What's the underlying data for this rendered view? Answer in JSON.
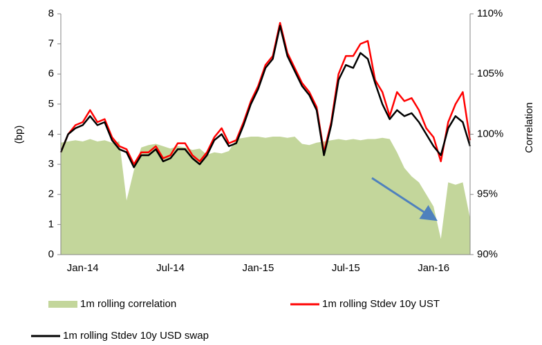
{
  "chart_data": {
    "type": "line",
    "y_label": "(bp)",
    "y2_label": "Correlation",
    "categories": [
      null,
      null,
      null,
      "Jan-14",
      null,
      null,
      null,
      null,
      null,
      null,
      null,
      null,
      null,
      null,
      null,
      "Jul-14",
      null,
      null,
      null,
      null,
      null,
      null,
      null,
      null,
      null,
      null,
      null,
      "Jan-15",
      null,
      null,
      null,
      null,
      null,
      null,
      null,
      null,
      null,
      null,
      null,
      "Jul-15",
      null,
      null,
      null,
      null,
      null,
      null,
      null,
      null,
      null,
      null,
      null,
      "Jan-16",
      null,
      null,
      null,
      null,
      null
    ],
    "ylim": [
      0,
      8
    ],
    "yticks": [
      0,
      1,
      2,
      3,
      4,
      5,
      6,
      7,
      8
    ],
    "y2lim": [
      90,
      110
    ],
    "y2ticks": [
      {
        "value": 90,
        "label": "90%"
      },
      {
        "value": 95,
        "label": "95%"
      },
      {
        "value": 100,
        "label": "100%"
      },
      {
        "value": 105,
        "label": "105%"
      },
      {
        "value": 110,
        "label": "110%"
      }
    ],
    "series": [
      {
        "name": "1m rolling correlation",
        "type": "area",
        "axis": "y2",
        "color": "#c3d69b",
        "values": [
          99.3,
          99.4,
          99.5,
          99.4,
          99.6,
          99.4,
          99.5,
          99.3,
          99.4,
          94.5,
          97,
          98.9,
          99.1,
          99.2,
          99,
          98.8,
          99,
          98.9,
          98.7,
          98.8,
          98.3,
          98.5,
          98.4,
          98.6,
          99.6,
          99.7,
          99.8,
          99.8,
          99.7,
          99.8,
          99.8,
          99.7,
          99.8,
          99.2,
          99.1,
          99.3,
          99.4,
          99.5,
          99.6,
          99.5,
          99.6,
          99.5,
          99.6,
          99.6,
          99.7,
          99.6,
          98.5,
          97.2,
          96.5,
          96,
          95,
          94,
          91.3,
          96,
          95.8,
          96,
          93
        ]
      },
      {
        "name": "1m rolling Stdev 10y UST",
        "type": "line",
        "color": "#ff0000",
        "values": [
          3.4,
          4.0,
          4.3,
          4.4,
          4.8,
          4.4,
          4.5,
          3.9,
          3.6,
          3.5,
          3.0,
          3.4,
          3.4,
          3.6,
          3.2,
          3.3,
          3.7,
          3.7,
          3.3,
          3.1,
          3.4,
          3.9,
          4.2,
          3.7,
          3.8,
          4.4,
          5.1,
          5.6,
          6.3,
          6.6,
          7.7,
          6.7,
          6.2,
          5.7,
          5.4,
          4.9,
          3.4,
          4.4,
          6.0,
          6.6,
          6.6,
          7.0,
          7.1,
          5.8,
          5.4,
          4.6,
          5.4,
          5.1,
          5.2,
          4.8,
          4.2,
          3.9,
          3.1,
          4.4,
          5.0,
          5.4,
          3.8
        ]
      },
      {
        "name": "1m rolling Stdev 10y USD swap",
        "type": "line",
        "color": "#000000",
        "values": [
          3.4,
          4.0,
          4.2,
          4.3,
          4.6,
          4.3,
          4.4,
          3.8,
          3.5,
          3.4,
          2.9,
          3.3,
          3.3,
          3.5,
          3.1,
          3.2,
          3.5,
          3.5,
          3.2,
          3.0,
          3.3,
          3.8,
          4.0,
          3.6,
          3.7,
          4.3,
          5.0,
          5.5,
          6.2,
          6.5,
          7.6,
          6.6,
          6.1,
          5.6,
          5.3,
          4.8,
          3.3,
          4.3,
          5.8,
          6.3,
          6.2,
          6.7,
          6.5,
          5.7,
          5.0,
          4.5,
          4.8,
          4.6,
          4.7,
          4.4,
          4.0,
          3.6,
          3.3,
          4.2,
          4.6,
          4.4,
          3.6
        ]
      }
    ]
  }
}
